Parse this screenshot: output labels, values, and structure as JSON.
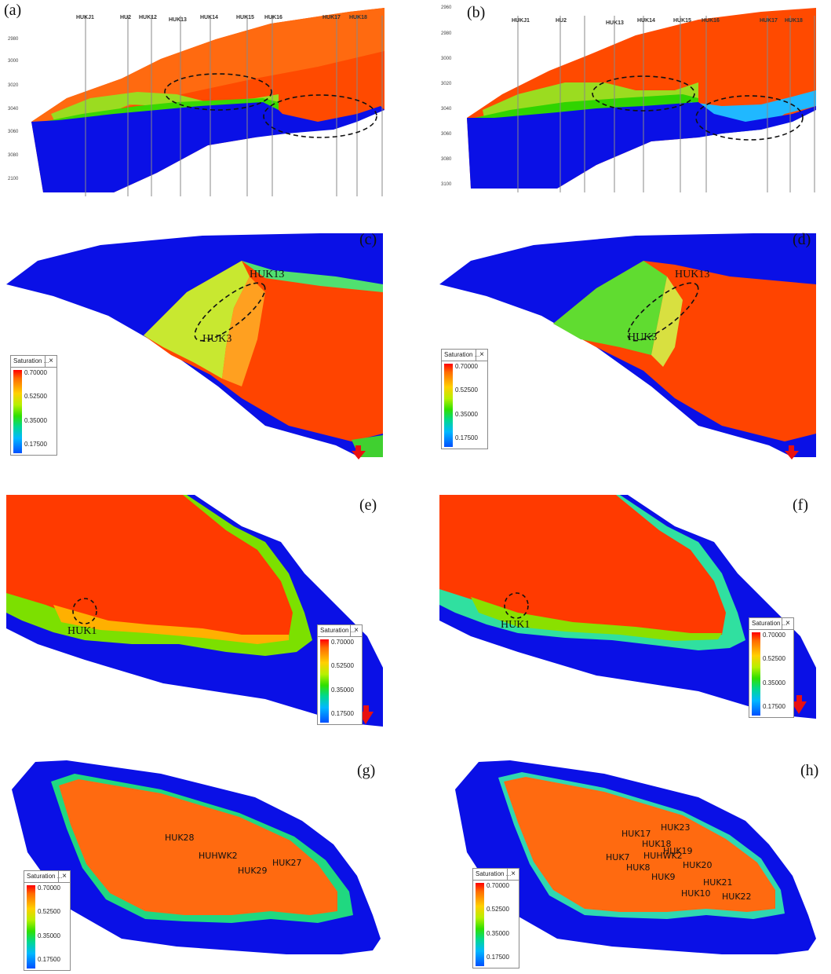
{
  "panels": {
    "a": {
      "label": "(a)",
      "wells": [
        "HUKJ1",
        "HU2",
        "HUK12",
        "HUK13",
        "HUK14",
        "HUK15",
        "HUK16",
        "HUK17",
        "HUK18"
      ],
      "yticks": [
        "2980",
        "3000",
        "3020",
        "3040",
        "3060",
        "3080",
        "2100"
      ]
    },
    "b": {
      "label": "(b)",
      "wells": [
        "HUKJ1",
        "HU2",
        "HUK13",
        "HUK14",
        "HUK15",
        "HUK16",
        "HUK17",
        "HUK18"
      ],
      "yticks": [
        "2960",
        "2980",
        "3000",
        "3020",
        "3040",
        "3060",
        "3080",
        "3100"
      ]
    },
    "c": {
      "label": "(c)",
      "callouts": [
        "HUK13",
        "HUK3"
      ]
    },
    "d": {
      "label": "(d)",
      "callouts": [
        "HUK13",
        "HUK3"
      ]
    },
    "e": {
      "label": "(e)",
      "callouts": [
        "HUK1"
      ]
    },
    "f": {
      "label": "(f)",
      "callouts": [
        "HUK1"
      ]
    },
    "g": {
      "label": "(g)",
      "callouts": [
        "HUK28",
        "HUHWK2",
        "HUK29",
        "HUK27"
      ]
    },
    "h": {
      "label": "(h)",
      "callouts": [
        "HUK17",
        "HUK23",
        "HUK18",
        "HUHWK2",
        "HUK19",
        "HUK7",
        "HUK8",
        "HUK20",
        "HUK9",
        "HUK21",
        "HUK10",
        "HUK22"
      ]
    }
  },
  "legend": {
    "title": "Saturation ...",
    "close": "×",
    "ticks": [
      "0.70000",
      "0.52500",
      "0.35000",
      "0.17500"
    ]
  },
  "colors": {
    "water": "#0a10e6",
    "oil": "#ff3a00",
    "arrow": "#e81010"
  }
}
